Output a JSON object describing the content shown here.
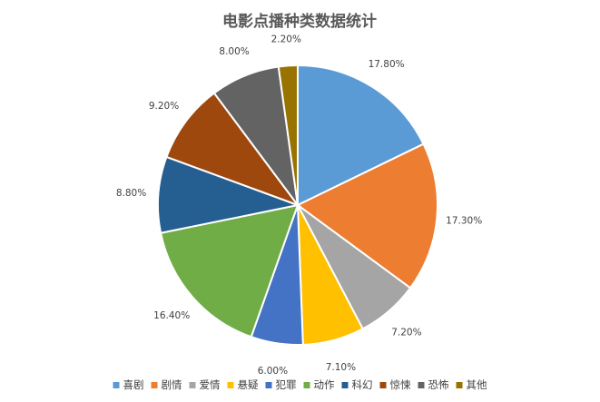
{
  "chart_data": {
    "type": "pie",
    "title": "电影点播种类数据统计",
    "categories": [
      "喜剧",
      "剧情",
      "爱情",
      "悬疑",
      "犯罪",
      "动作",
      "科幻",
      "惊悚",
      "恐怖",
      "其他"
    ],
    "values": [
      17.8,
      17.3,
      7.2,
      7.1,
      6.0,
      16.4,
      8.8,
      9.2,
      8.0,
      2.2
    ],
    "labels": [
      "17.80%",
      "17.30%",
      "7.20%",
      "7.10%",
      "6.00%",
      "16.40%",
      "8.80%",
      "9.20%",
      "8.00%",
      "2.20%"
    ],
    "colors": [
      "#5B9BD5",
      "#ED7D31",
      "#A5A5A5",
      "#FFC000",
      "#4472C4",
      "#70AD47",
      "#255E91",
      "#9E480E",
      "#636363",
      "#997300"
    ],
    "start_angle": "12 o'clock",
    "direction": "clockwise",
    "legend_position": "bottom"
  }
}
